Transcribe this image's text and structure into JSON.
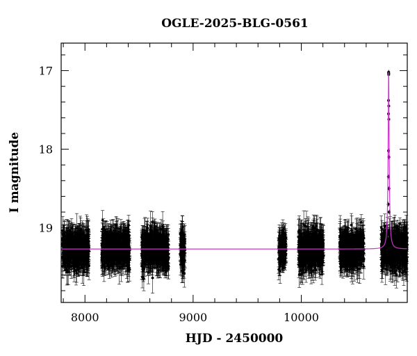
{
  "chart_data": {
    "type": "scatter",
    "title": "OGLE-2025-BLG-0561",
    "xlabel": "HJD - 2450000",
    "ylabel": "I magnitude",
    "xlim": [
      7780,
      10980
    ],
    "ylim": [
      19.95,
      16.65
    ],
    "y_inverted": true,
    "grid": false,
    "legend": "none",
    "x_ticks": [
      {
        "value": 8000,
        "label": "8000"
      },
      {
        "value": 9000,
        "label": "9000"
      },
      {
        "value": 10000,
        "label": "10000"
      }
    ],
    "y_ticks": [
      {
        "value": 17,
        "label": "17"
      },
      {
        "value": 18,
        "label": "18"
      },
      {
        "value": 19,
        "label": "19"
      }
    ],
    "x_minor_step": 200,
    "y_minor_step": 0.2,
    "baseline_mag": 19.27,
    "seasons": [
      {
        "start": 7790,
        "end": 8040
      },
      {
        "start": 8155,
        "end": 8415
      },
      {
        "start": 8525,
        "end": 8775
      },
      {
        "start": 8880,
        "end": 8925
      },
      {
        "start": 9790,
        "end": 9860
      },
      {
        "start": 9975,
        "end": 10205
      },
      {
        "start": 10355,
        "end": 10580
      },
      {
        "start": 10740,
        "end": 10980
      }
    ],
    "event": {
      "t0": 10808,
      "peak_mag": 17.02,
      "tE": 3.5,
      "peak_points": [
        {
          "x": 10807.6,
          "y": 17.03
        },
        {
          "x": 10808.0,
          "y": 17.02
        },
        {
          "x": 10808.4,
          "y": 17.05
        },
        {
          "x": 10808.8,
          "y": 17.04
        },
        {
          "x": 10806.9,
          "y": 17.38
        },
        {
          "x": 10809.2,
          "y": 17.45
        },
        {
          "x": 10806.6,
          "y": 17.55
        },
        {
          "x": 10809.5,
          "y": 17.62
        },
        {
          "x": 10806.2,
          "y": 18.02
        },
        {
          "x": 10810.0,
          "y": 18.1
        },
        {
          "x": 10805.5,
          "y": 18.35
        },
        {
          "x": 10811.0,
          "y": 18.5
        },
        {
          "x": 10804.0,
          "y": 18.7
        },
        {
          "x": 10813.0,
          "y": 18.8
        }
      ]
    },
    "series": [
      {
        "kind": "points",
        "color": "#000000"
      },
      {
        "kind": "model",
        "color": "#cc33cc"
      }
    ]
  }
}
